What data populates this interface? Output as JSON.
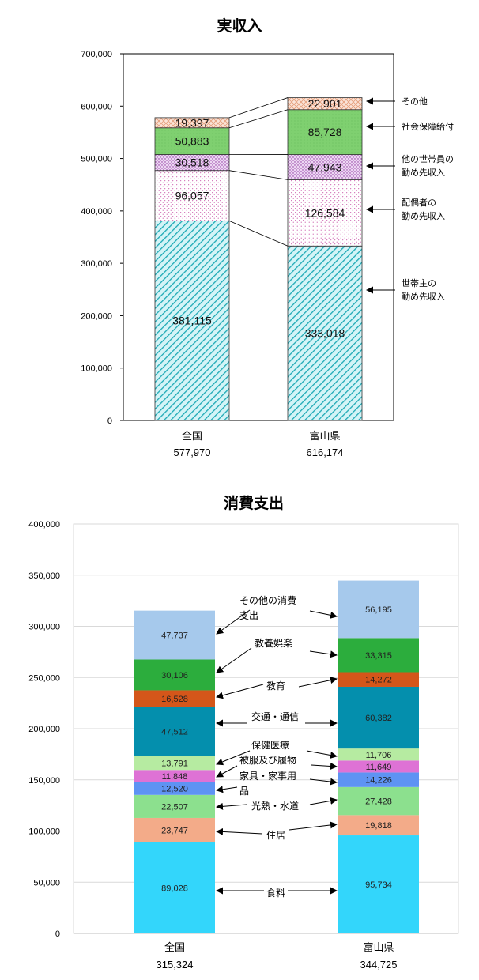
{
  "chart_data": [
    {
      "type": "bar",
      "title": "実収入",
      "categories": [
        "全国",
        "富山県"
      ],
      "category_totals": [
        "577,970",
        "616,174"
      ],
      "ylim": [
        0,
        700000
      ],
      "yticks": [
        "0",
        "100,000",
        "200,000",
        "300,000",
        "400,000",
        "500,000",
        "600,000",
        "700,000"
      ],
      "grid": false,
      "stacked": true,
      "series": [
        {
          "name": "世帯主の勤め先収入",
          "values": [
            381115,
            333018
          ],
          "labels": [
            "381,115",
            "333,018"
          ]
        },
        {
          "name": "配偶者の勤め先収入",
          "values": [
            96057,
            126584
          ],
          "labels": [
            "96,057",
            "126,584"
          ]
        },
        {
          "name": "他の世帯員の勤め先収入",
          "values": [
            30518,
            47943
          ],
          "labels": [
            "30,518",
            "47,943"
          ]
        },
        {
          "name": "社会保障給付",
          "values": [
            50883,
            85728
          ],
          "labels": [
            "50,883",
            "85,728"
          ]
        },
        {
          "name": "その他",
          "values": [
            19397,
            22901
          ],
          "labels": [
            "19,397",
            "22,901"
          ]
        }
      ],
      "annotations": [
        {
          "lines": [
            "その他"
          ]
        },
        {
          "lines": [
            "社会保障給付"
          ]
        },
        {
          "lines": [
            "他の世帯員の",
            "勤め先収入"
          ]
        },
        {
          "lines": [
            "配偶者の",
            "勤め先収入"
          ]
        },
        {
          "lines": [
            "世帯主の",
            "勤め先収入"
          ]
        }
      ]
    },
    {
      "type": "bar",
      "title": "消費支出",
      "categories": [
        "全国",
        "富山県"
      ],
      "category_totals": [
        "315,324",
        "344,725"
      ],
      "ylim": [
        0,
        400000
      ],
      "yticks": [
        "0",
        "50,000",
        "100,000",
        "150,000",
        "200,000",
        "250,000",
        "300,000",
        "350,000",
        "400,000"
      ],
      "grid": true,
      "stacked": true,
      "series": [
        {
          "name": "食料",
          "values": [
            89028,
            95734
          ],
          "labels": [
            "89,028",
            "95,734"
          ],
          "color": "#33d6fb"
        },
        {
          "name": "住居",
          "values": [
            23747,
            19818
          ],
          "labels": [
            "23,747",
            "19,818"
          ],
          "color": "#f3ab89"
        },
        {
          "name": "光熱・水道",
          "values": [
            22507,
            27428
          ],
          "labels": [
            "22,507",
            "27,428"
          ],
          "color": "#8ce08e"
        },
        {
          "name": "家具・家事用品",
          "values": [
            12520,
            14226
          ],
          "labels": [
            "12,520",
            "14,226"
          ],
          "color": "#5e93f3"
        },
        {
          "name": "被服及び履物",
          "values": [
            11848,
            11649
          ],
          "labels": [
            "11,848",
            "11,649"
          ],
          "color": "#de72d5"
        },
        {
          "name": "保健医療",
          "values": [
            13791,
            11706
          ],
          "labels": [
            "13,791",
            "11,706"
          ],
          "color": "#b6eba1"
        },
        {
          "name": "交通・通信",
          "values": [
            47512,
            60382
          ],
          "labels": [
            "47,512",
            "60,382"
          ],
          "color": "#048fad"
        },
        {
          "name": "教育",
          "values": [
            16528,
            14272
          ],
          "labels": [
            "16,528",
            "14,272"
          ],
          "color": "#d4561a"
        },
        {
          "name": "教養娯楽",
          "values": [
            30106,
            33315
          ],
          "labels": [
            "30,106",
            "33,315"
          ],
          "color": "#2cad3d"
        },
        {
          "name": "その他の消費支出",
          "values": [
            47737,
            56195
          ],
          "labels": [
            "47,737",
            "56,195"
          ],
          "color": "#a6c9ec"
        }
      ],
      "annotations": {
        "food": {
          "lines": [
            "食料"
          ]
        },
        "housing": {
          "lines": [
            "住居"
          ]
        },
        "utilities": {
          "lines": [
            "光熱・水道"
          ]
        },
        "furniture": {
          "lines": [
            "家具・家事用",
            "品"
          ]
        },
        "clothing": {
          "lines": [
            "被服及び履物"
          ]
        },
        "medical": {
          "lines": [
            "保健医療"
          ]
        },
        "transport": {
          "lines": [
            "交通・通信"
          ]
        },
        "education": {
          "lines": [
            "教育"
          ]
        },
        "culture": {
          "lines": [
            "教養娯楽"
          ]
        },
        "other": {
          "lines": [
            "その他の消費",
            "支出"
          ]
        }
      }
    }
  ]
}
